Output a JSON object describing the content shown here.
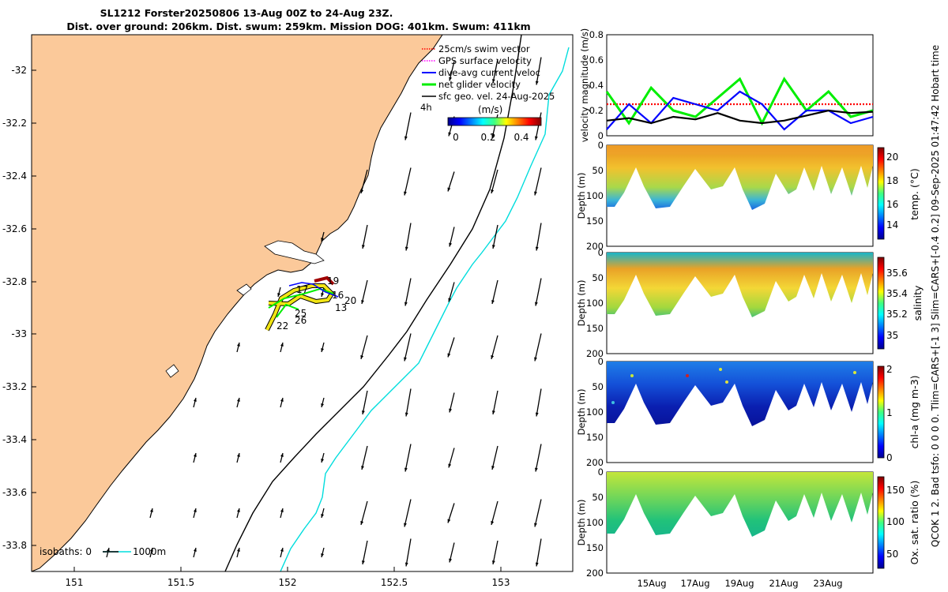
{
  "title": {
    "line1": "SL1212 Forster20250806 13-Aug 00Z to 24-Aug 23Z.",
    "line2": "Dist. over ground: 206km. Dist. swum: 259km. Mission DOG: 401km. Swum: 411km"
  },
  "side_text": "QCOK 1  2. Bad tsfo: 0  0  0  0. Tlim=CARS+[-1 3] Slim=CARS+[-0.4 0.2] 09-Sep-2025 01:47:42 Hobart time",
  "map": {
    "legend": [
      {
        "label": "25cm/s swim vector",
        "color": "#ff0000",
        "style": "dotted"
      },
      {
        "label": "GPS surface velocity",
        "color": "#ff00ff",
        "style": "dotted"
      },
      {
        "label": "dive-avg current veloc",
        "color": "#0000ff",
        "style": "solid"
      },
      {
        "label": "net glider velocity",
        "color": "#00ee00",
        "style": "solid"
      },
      {
        "label": "sfc geo. vel. 24-Aug-2025",
        "color": "#000000",
        "style": "solid"
      }
    ],
    "vector_scale_label": "4h",
    "colorbar": {
      "unit": "(m/s)",
      "ticks": [
        "0",
        "0.2",
        "0.4"
      ]
    },
    "isobath_label": "isobaths: 0",
    "isobath_label_end": "1000m",
    "x_ticks": [
      "151",
      "151.5",
      "152",
      "152.5",
      "153"
    ],
    "y_ticks": [
      "-32",
      "-32.2",
      "-32.4",
      "-32.6",
      "-32.8",
      "-33",
      "-33.2",
      "-33.4",
      "-33.6",
      "-33.8"
    ],
    "day_labels": [
      "19",
      "17",
      "16",
      "20",
      "13",
      "25",
      "26",
      "22"
    ],
    "colors": {
      "land": "#fbc99a",
      "isobath_shallow": "#000000",
      "isobath_deep": "#00dddd"
    }
  },
  "chart_data": [
    {
      "type": "line",
      "title": "",
      "ylabel": "velocity magnitude (m/s)",
      "ylim": [
        0,
        0.8
      ],
      "yticks": [
        "0",
        "0.2",
        "0.4",
        "0.6",
        "0.8"
      ],
      "x": [
        0,
        1,
        2,
        3,
        4,
        5,
        6,
        7,
        8,
        9,
        10,
        11,
        12
      ],
      "series": [
        {
          "name": "25cm/s swim vector",
          "color": "#ff0000",
          "values": [
            0.25,
            0.25,
            0.25,
            0.25,
            0.25,
            0.25,
            0.25,
            0.25,
            0.25,
            0.25,
            0.25,
            0.25,
            0.25
          ]
        },
        {
          "name": "net glider velocity",
          "color": "#00ee00",
          "values": [
            0.35,
            0.1,
            0.38,
            0.2,
            0.15,
            0.3,
            0.45,
            0.1,
            0.45,
            0.2,
            0.35,
            0.15,
            0.2
          ]
        },
        {
          "name": "dive-avg current veloc",
          "color": "#0000ff",
          "values": [
            0.05,
            0.25,
            0.1,
            0.3,
            0.25,
            0.2,
            0.35,
            0.25,
            0.05,
            0.2,
            0.2,
            0.1,
            0.15
          ]
        },
        {
          "name": "sfc geo. vel.",
          "color": "#000000",
          "values": [
            0.12,
            0.14,
            0.1,
            0.15,
            0.13,
            0.18,
            0.12,
            0.1,
            0.12,
            0.16,
            0.2,
            0.18,
            0.19
          ]
        }
      ]
    },
    {
      "type": "heatmap",
      "ylabel": "Depth (m)",
      "yticks": [
        "0",
        "50",
        "100",
        "150",
        "200"
      ],
      "colorbar_label": "temp. (°C)",
      "colorbar_ticks": [
        "20",
        "18",
        "16",
        "14"
      ],
      "clim": [
        13,
        20.5
      ]
    },
    {
      "type": "heatmap",
      "ylabel": "Depth (m)",
      "yticks": [
        "0",
        "50",
        "100",
        "150",
        "200"
      ],
      "colorbar_label": "salinity",
      "colorbar_ticks": [
        "35.6",
        "35.4",
        "35.2",
        "35"
      ],
      "clim": [
        34.9,
        35.7
      ]
    },
    {
      "type": "heatmap",
      "ylabel": "Depth (m)",
      "yticks": [
        "0",
        "50",
        "100",
        "150",
        "200"
      ],
      "colorbar_label": "chl-a (mg m-3)",
      "colorbar_ticks": [
        "2",
        "1",
        "0"
      ],
      "clim": [
        0,
        2
      ]
    },
    {
      "type": "heatmap",
      "ylabel": "Depth (m)",
      "yticks": [
        "0",
        "50",
        "100",
        "150",
        "200"
      ],
      "colorbar_label": "Ox. sat. ratio (%)",
      "colorbar_ticks": [
        "150",
        "100",
        "50"
      ],
      "clim": [
        25,
        175
      ],
      "x_ticks": [
        "15Aug",
        "17Aug",
        "19Aug",
        "21Aug",
        "23Aug"
      ]
    }
  ]
}
